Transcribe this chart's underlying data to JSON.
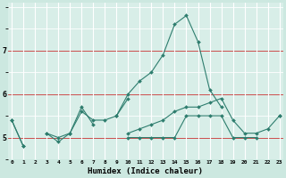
{
  "xlabel": "Humidex (Indice chaleur)",
  "ylabel": "",
  "x": [
    0,
    1,
    2,
    3,
    4,
    5,
    6,
    7,
    8,
    9,
    10,
    11,
    12,
    13,
    14,
    15,
    16,
    17,
    18,
    19,
    20,
    21,
    22,
    23
  ],
  "line1": [
    5.4,
    4.8,
    null,
    5.1,
    5.0,
    5.1,
    5.7,
    5.3,
    null,
    5.5,
    5.9,
    null,
    null,
    null,
    null,
    null,
    null,
    null,
    null,
    null,
    null,
    null,
    null,
    null
  ],
  "line2": [
    5.4,
    4.8,
    null,
    5.1,
    4.9,
    5.1,
    5.6,
    5.4,
    5.4,
    5.5,
    6.0,
    6.3,
    6.5,
    6.9,
    7.6,
    7.8,
    7.2,
    6.1,
    5.7,
    null,
    null,
    null,
    null,
    null
  ],
  "line3": [
    null,
    null,
    null,
    null,
    null,
    5.1,
    null,
    null,
    null,
    null,
    5.0,
    5.0,
    5.0,
    5.0,
    5.0,
    5.5,
    5.5,
    5.5,
    5.5,
    5.0,
    5.0,
    5.0,
    null,
    5.5
  ],
  "line4": [
    null,
    null,
    null,
    null,
    null,
    null,
    null,
    null,
    null,
    null,
    5.1,
    5.2,
    5.3,
    5.4,
    5.6,
    5.7,
    5.7,
    5.8,
    5.9,
    5.4,
    5.1,
    5.1,
    5.2,
    5.5
  ],
  "color": "#2e7d6e",
  "bg_color": "#cce8e0",
  "grid_color_major": "#ffffff",
  "grid_color_minor": "#dff0ec",
  "plot_bg": "#d8eee8",
  "red_line_color": "#cc3333",
  "ylim": [
    4.5,
    8.1
  ],
  "yticks": [
    5,
    6,
    7
  ],
  "xlim": [
    -0.3,
    23.3
  ]
}
